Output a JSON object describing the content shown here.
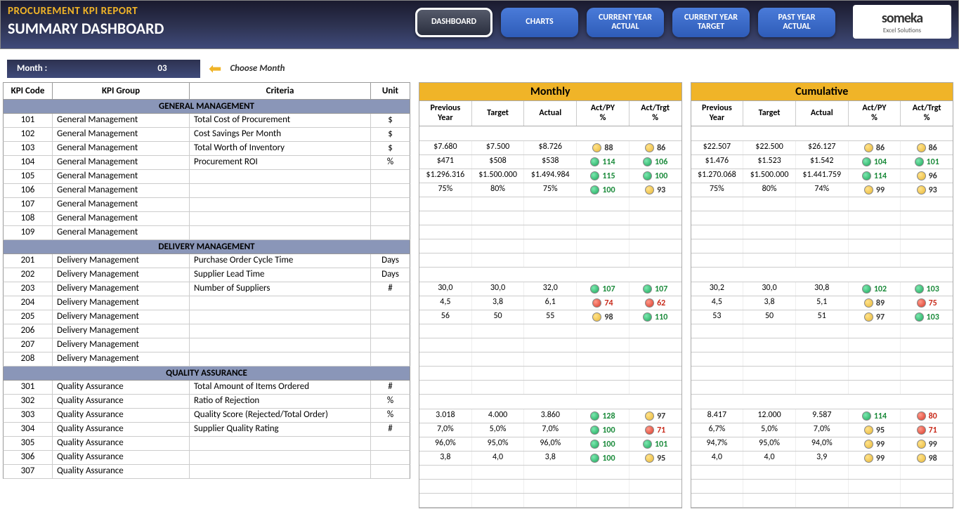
{
  "header": {
    "title": "PROCUREMENT KPI REPORT",
    "subtitle": "SUMMARY DASHBOARD",
    "nav": [
      "DASHBOARD",
      "CHARTS",
      "CURRENT YEAR\nACTUAL",
      "CURRENT YEAR\nTARGET",
      "PAST YEAR\nACTUAL"
    ],
    "active_nav": 0,
    "logo_name": "someka",
    "logo_sub": "Excel Solutions"
  },
  "month": {
    "label": "Month :",
    "value": "03",
    "hint": "Choose Month"
  },
  "left_cols": [
    "KPI Code",
    "KPI Group",
    "Criteria",
    "Unit"
  ],
  "block_titles": [
    "Monthly",
    "Cumulative"
  ],
  "block_cols": [
    "Previous\nYear",
    "Target",
    "Actual",
    "Act/PY\n%",
    "Act/Trgt\n%"
  ],
  "groups": [
    {
      "name": "GENERAL MANAGEMENT",
      "rows": [
        {
          "code": "101",
          "group": "General Management",
          "crit": "Total Cost of Procurement",
          "unit": "$",
          "m": {
            "py": "$7.680",
            "tg": "$7.500",
            "ac": "$8.726",
            "p1": {
              "v": "88",
              "c": "y"
            },
            "p2": {
              "v": "86",
              "c": "y"
            }
          },
          "c": {
            "py": "$22.507",
            "tg": "$22.500",
            "ac": "$26.127",
            "p1": {
              "v": "86",
              "c": "y"
            },
            "p2": {
              "v": "86",
              "c": "y"
            }
          }
        },
        {
          "code": "102",
          "group": "General Management",
          "crit": "Cost Savings Per Month",
          "unit": "$",
          "m": {
            "py": "$471",
            "tg": "$508",
            "ac": "$538",
            "p1": {
              "v": "114",
              "c": "g"
            },
            "p2": {
              "v": "106",
              "c": "g"
            }
          },
          "c": {
            "py": "$1.476",
            "tg": "$1.523",
            "ac": "$1.542",
            "p1": {
              "v": "104",
              "c": "g"
            },
            "p2": {
              "v": "101",
              "c": "g"
            }
          }
        },
        {
          "code": "103",
          "group": "General Management",
          "crit": "Total Worth of Inventory",
          "unit": "$",
          "m": {
            "py": "$1.296.316",
            "tg": "$1.500.000",
            "ac": "$1.494.984",
            "p1": {
              "v": "115",
              "c": "g"
            },
            "p2": {
              "v": "100",
              "c": "g"
            }
          },
          "c": {
            "py": "$1.270.068",
            "tg": "$1.500.000",
            "ac": "$1.441.759",
            "p1": {
              "v": "114",
              "c": "g"
            },
            "p2": {
              "v": "96",
              "c": "y"
            }
          }
        },
        {
          "code": "104",
          "group": "General Management",
          "crit": "Procurement ROI",
          "unit": "%",
          "m": {
            "py": "75%",
            "tg": "80%",
            "ac": "75%",
            "p1": {
              "v": "100",
              "c": "g"
            },
            "p2": {
              "v": "93",
              "c": "y"
            }
          },
          "c": {
            "py": "75%",
            "tg": "80%",
            "ac": "74%",
            "p1": {
              "v": "99",
              "c": "y"
            },
            "p2": {
              "v": "93",
              "c": "y"
            }
          }
        },
        {
          "code": "105",
          "group": "General Management",
          "crit": "",
          "unit": ""
        },
        {
          "code": "106",
          "group": "General Management",
          "crit": "",
          "unit": ""
        },
        {
          "code": "107",
          "group": "General Management",
          "crit": "",
          "unit": ""
        },
        {
          "code": "108",
          "group": "General Management",
          "crit": "",
          "unit": ""
        },
        {
          "code": "109",
          "group": "General Management",
          "crit": "",
          "unit": ""
        }
      ]
    },
    {
      "name": "DELIVERY MANAGEMENT",
      "rows": [
        {
          "code": "201",
          "group": "Delivery Management",
          "crit": "Purchase Order Cycle Time",
          "unit": "Days",
          "m": {
            "py": "30,0",
            "tg": "30,0",
            "ac": "32,0",
            "p1": {
              "v": "107",
              "c": "g"
            },
            "p2": {
              "v": "107",
              "c": "g"
            }
          },
          "c": {
            "py": "30,2",
            "tg": "30,0",
            "ac": "30,8",
            "p1": {
              "v": "102",
              "c": "g"
            },
            "p2": {
              "v": "103",
              "c": "g"
            }
          }
        },
        {
          "code": "202",
          "group": "Delivery Management",
          "crit": "Supplier Lead Time",
          "unit": "Days",
          "m": {
            "py": "4,5",
            "tg": "3,8",
            "ac": "6,1",
            "p1": {
              "v": "74",
              "c": "r"
            },
            "p2": {
              "v": "62",
              "c": "r"
            }
          },
          "c": {
            "py": "4,5",
            "tg": "3,8",
            "ac": "5,1",
            "p1": {
              "v": "89",
              "c": "y"
            },
            "p2": {
              "v": "75",
              "c": "r"
            }
          }
        },
        {
          "code": "203",
          "group": "Delivery Management",
          "crit": "Number of Suppliers",
          "unit": "#",
          "m": {
            "py": "56",
            "tg": "50",
            "ac": "55",
            "p1": {
              "v": "98",
              "c": "y"
            },
            "p2": {
              "v": "110",
              "c": "g"
            }
          },
          "c": {
            "py": "53",
            "tg": "50",
            "ac": "51",
            "p1": {
              "v": "97",
              "c": "y"
            },
            "p2": {
              "v": "103",
              "c": "g"
            }
          }
        },
        {
          "code": "204",
          "group": "Delivery Management",
          "crit": "",
          "unit": ""
        },
        {
          "code": "205",
          "group": "Delivery Management",
          "crit": "",
          "unit": ""
        },
        {
          "code": "206",
          "group": "Delivery Management",
          "crit": "",
          "unit": ""
        },
        {
          "code": "207",
          "group": "Delivery Management",
          "crit": "",
          "unit": ""
        },
        {
          "code": "208",
          "group": "Delivery Management",
          "crit": "",
          "unit": ""
        }
      ]
    },
    {
      "name": "QUALITY ASSURANCE",
      "rows": [
        {
          "code": "301",
          "group": "Quality Assurance",
          "crit": "Total Amount of Items Ordered",
          "unit": "#",
          "m": {
            "py": "3.018",
            "tg": "4.000",
            "ac": "3.860",
            "p1": {
              "v": "128",
              "c": "g"
            },
            "p2": {
              "v": "97",
              "c": "y"
            }
          },
          "c": {
            "py": "8.417",
            "tg": "12.000",
            "ac": "9.587",
            "p1": {
              "v": "114",
              "c": "g"
            },
            "p2": {
              "v": "80",
              "c": "r"
            }
          }
        },
        {
          "code": "302",
          "group": "Quality Assurance",
          "crit": "Ratio of Rejection",
          "unit": "%",
          "m": {
            "py": "7,0%",
            "tg": "5,0%",
            "ac": "7,0%",
            "p1": {
              "v": "100",
              "c": "g"
            },
            "p2": {
              "v": "71",
              "c": "r"
            }
          },
          "c": {
            "py": "6,7%",
            "tg": "5,0%",
            "ac": "7,0%",
            "p1": {
              "v": "95",
              "c": "y"
            },
            "p2": {
              "v": "71",
              "c": "r"
            }
          }
        },
        {
          "code": "303",
          "group": "Quality Assurance",
          "crit": "Quality Score (Rejected/Total Order)",
          "unit": "%",
          "m": {
            "py": "96,0%",
            "tg": "95,0%",
            "ac": "96,0%",
            "p1": {
              "v": "100",
              "c": "g"
            },
            "p2": {
              "v": "101",
              "c": "g"
            }
          },
          "c": {
            "py": "94,7%",
            "tg": "95,0%",
            "ac": "94,0%",
            "p1": {
              "v": "99",
              "c": "y"
            },
            "p2": {
              "v": "99",
              "c": "y"
            }
          }
        },
        {
          "code": "304",
          "group": "Quality Assurance",
          "crit": "Supplier Quality Rating",
          "unit": "#",
          "m": {
            "py": "3,8",
            "tg": "4,0",
            "ac": "3,8",
            "p1": {
              "v": "100",
              "c": "g"
            },
            "p2": {
              "v": "95",
              "c": "y"
            }
          },
          "c": {
            "py": "4,0",
            "tg": "4,0",
            "ac": "3,9",
            "p1": {
              "v": "99",
              "c": "y"
            },
            "p2": {
              "v": "98",
              "c": "y"
            }
          }
        },
        {
          "code": "305",
          "group": "Quality Assurance",
          "crit": "",
          "unit": ""
        },
        {
          "code": "306",
          "group": "Quality Assurance",
          "crit": "",
          "unit": ""
        },
        {
          "code": "307",
          "group": "Quality Assurance",
          "crit": "",
          "unit": ""
        }
      ]
    }
  ]
}
